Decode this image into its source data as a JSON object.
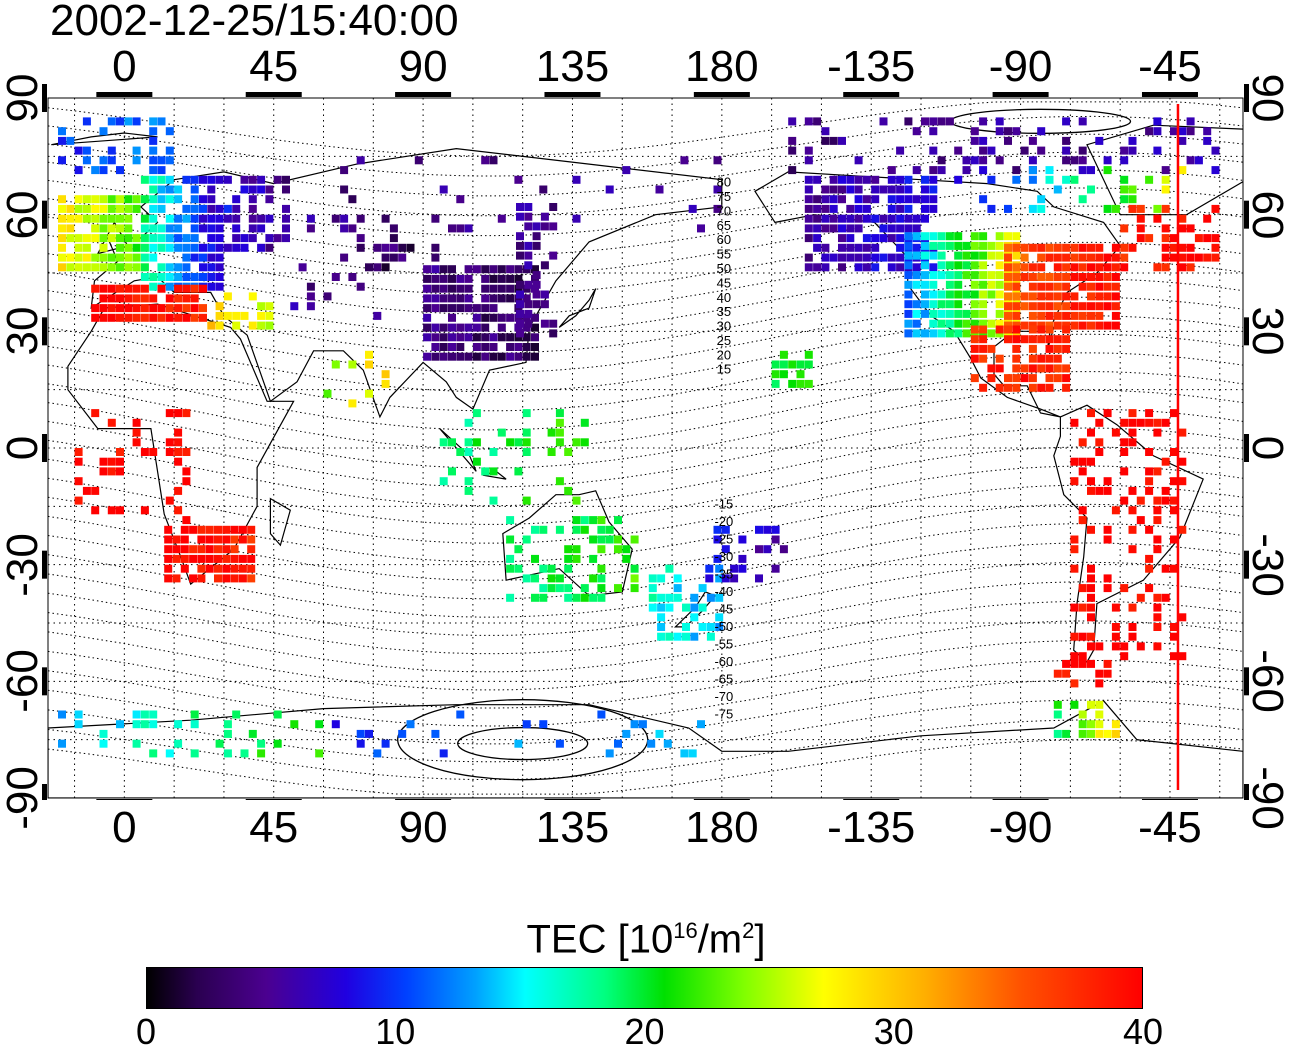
{
  "title": "2002-12-25/15:40:00",
  "map": {
    "lon_ticks": [
      {
        "lon": 0,
        "label": "0"
      },
      {
        "lon": 45,
        "label": "45"
      },
      {
        "lon": 90,
        "label": "90"
      },
      {
        "lon": 135,
        "label": "135"
      },
      {
        "lon": 180,
        "label": "180"
      },
      {
        "lon": 225,
        "label": "-135"
      },
      {
        "lon": 270,
        "label": "-90"
      },
      {
        "lon": 315,
        "label": "-45"
      }
    ],
    "lat_ticks": [
      {
        "lat": 90,
        "label": "90"
      },
      {
        "lat": 60,
        "label": "60"
      },
      {
        "lat": 30,
        "label": "30"
      },
      {
        "lat": 0,
        "label": "0"
      },
      {
        "lat": -30,
        "label": "-30"
      },
      {
        "lat": -60,
        "label": "-60"
      },
      {
        "lat": -90,
        "label": "-90"
      }
    ],
    "lon_range": [
      -23,
      337
    ],
    "lat_range": [
      -90,
      90
    ],
    "terminator_lon": 315,
    "contour_labels": [
      "80",
      "75",
      "70",
      "65",
      "60",
      "55",
      "50",
      "45",
      "40",
      "35",
      "30",
      "25",
      "20",
      "15",
      "-15",
      "-20",
      "-25",
      "-30",
      "-35",
      "-40",
      "-45",
      "-50",
      "-55",
      "-60",
      "-65",
      "-70",
      "-75"
    ]
  },
  "colorbar": {
    "title": "TEC  [10",
    "title_sup1": "16",
    "title_mid": "/m",
    "title_sup2": "2",
    "title_end": "]",
    "ticks": [
      "0",
      "10",
      "20",
      "30",
      "40"
    ],
    "min": 0,
    "max": 40
  },
  "colors": {
    "terminator": "#ff0000"
  }
}
